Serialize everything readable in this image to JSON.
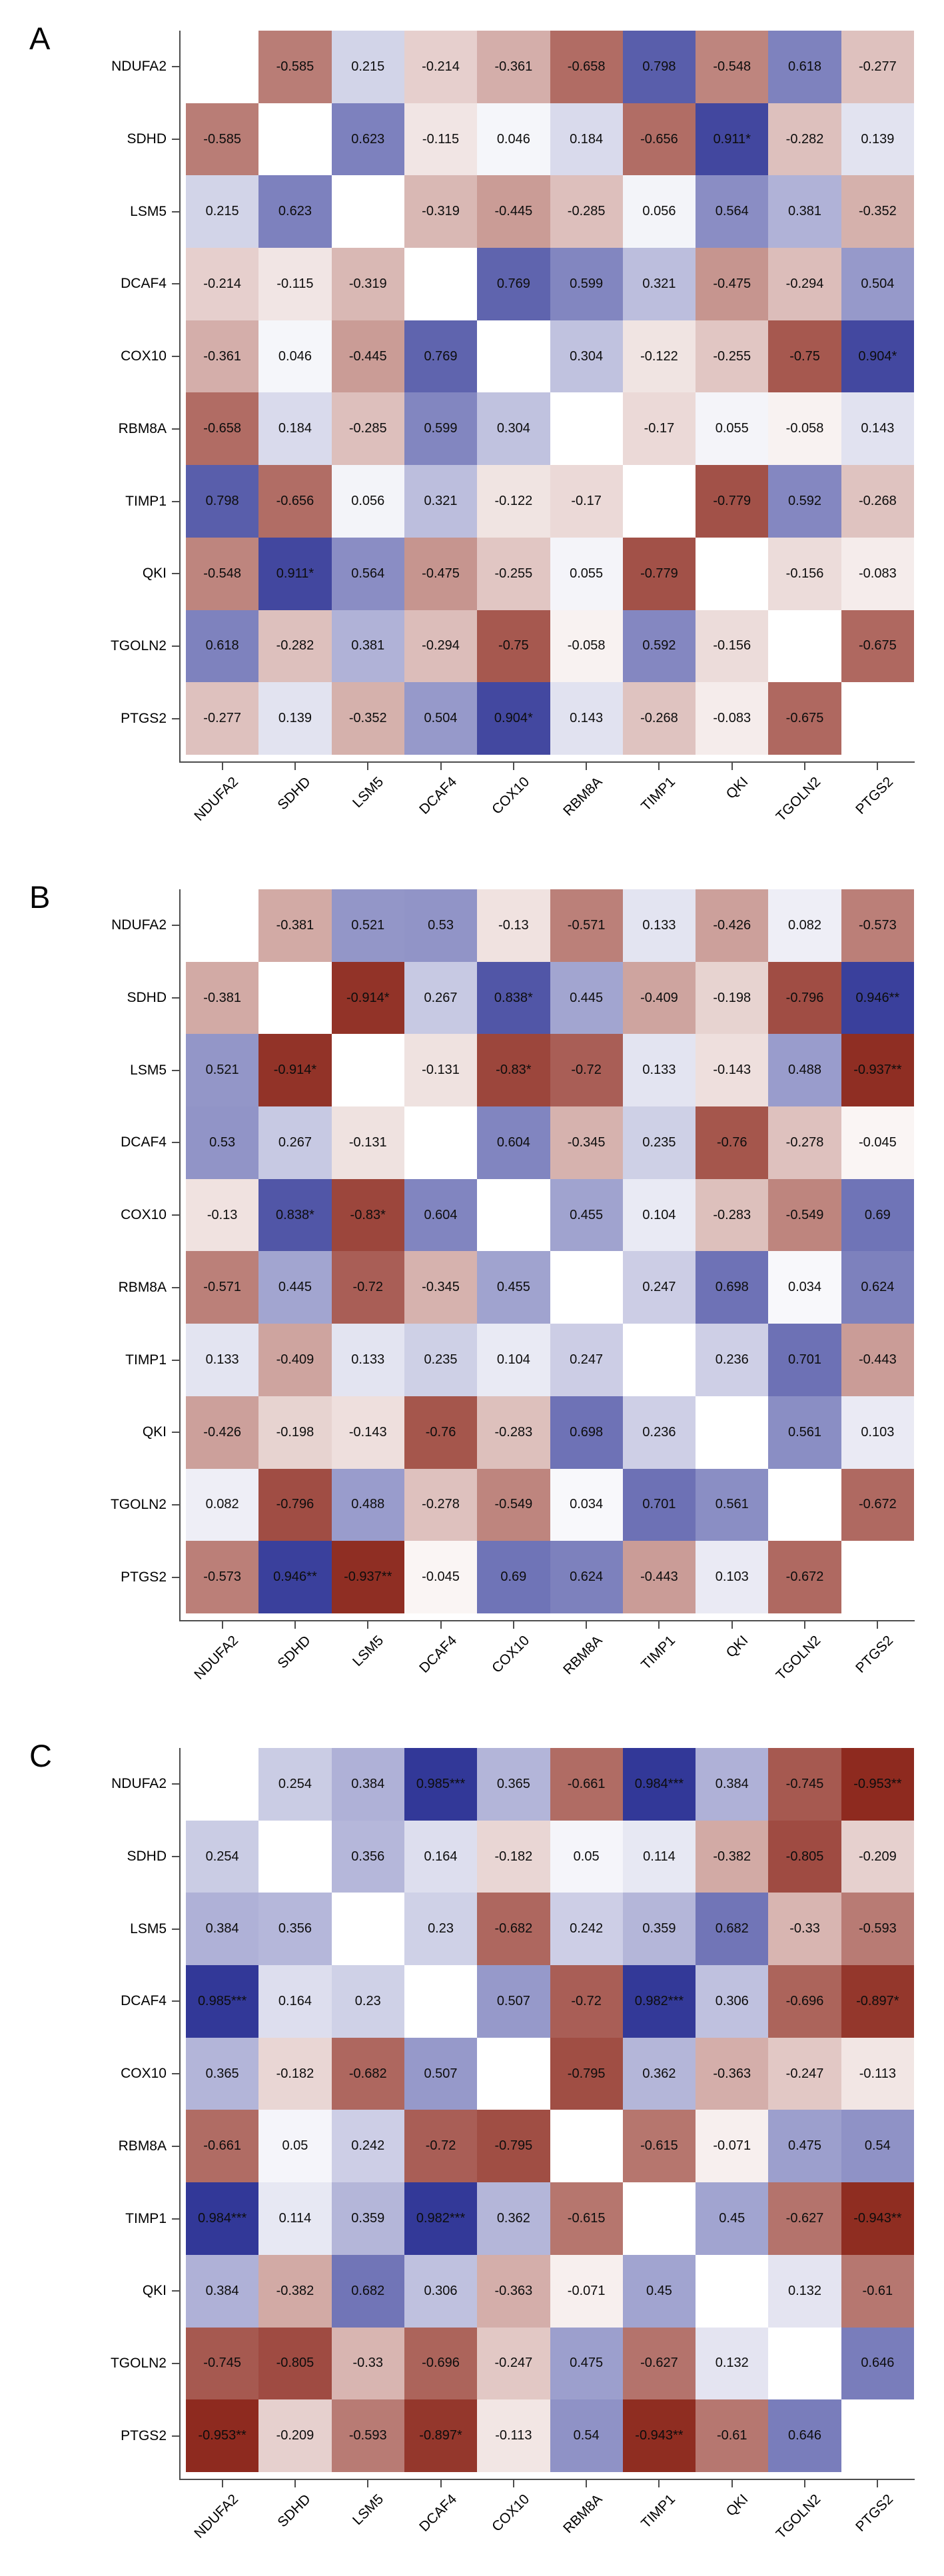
{
  "chart_data": {
    "type": "heatmap",
    "title": "",
    "categories": [
      "NDUFA2",
      "SDHD",
      "LSM5",
      "DCAF4",
      "COX10",
      "RBM8A",
      "TIMP1",
      "QKI",
      "TGOLN2",
      "PTGS2"
    ],
    "value_range": [
      -1,
      1
    ],
    "x_tick_rotation": 45,
    "diagonal": "blank",
    "grid": "off",
    "legend": "none",
    "axis_color": "#4d4d4d",
    "colormap": {
      "positive_end": "#2f3596",
      "negative_end": "#882014",
      "midpoint": "#ffffff"
    },
    "panels": [
      {
        "label": "A",
        "matrix": [
          [
            "",
            "-0.585",
            "0.215",
            "-0.214",
            "-0.361",
            "-0.658",
            "0.798",
            "-0.548",
            "0.618",
            "-0.277"
          ],
          [
            "-0.585",
            "",
            "0.623",
            "-0.115",
            "0.046",
            "0.184",
            "-0.656",
            "0.911*",
            "-0.282",
            "0.139"
          ],
          [
            "0.215",
            "0.623",
            "",
            "-0.319",
            "-0.445",
            "-0.285",
            "0.056",
            "0.564",
            "0.381",
            "-0.352"
          ],
          [
            "-0.214",
            "-0.115",
            "-0.319",
            "",
            "0.769",
            "0.599",
            "0.321",
            "-0.475",
            "-0.294",
            "0.504"
          ],
          [
            "-0.361",
            "0.046",
            "-0.445",
            "0.769",
            "",
            "0.304",
            "-0.122",
            "-0.255",
            "-0.75",
            "0.904*"
          ],
          [
            "-0.658",
            "0.184",
            "-0.285",
            "0.599",
            "0.304",
            "",
            "-0.17",
            "0.055",
            "-0.058",
            "0.143"
          ],
          [
            "0.798",
            "-0.656",
            "0.056",
            "0.321",
            "-0.122",
            "-0.17",
            "",
            "-0.779",
            "0.592",
            "-0.268"
          ],
          [
            "-0.548",
            "0.911*",
            "0.564",
            "-0.475",
            "-0.255",
            "0.055",
            "-0.779",
            "",
            "-0.156",
            "-0.083"
          ],
          [
            "0.618",
            "-0.282",
            "0.381",
            "-0.294",
            "-0.75",
            "-0.058",
            "0.592",
            "-0.156",
            "",
            "-0.675"
          ],
          [
            "-0.277",
            "0.139",
            "-0.352",
            "0.504",
            "0.904*",
            "0.143",
            "-0.268",
            "-0.083",
            "-0.675",
            ""
          ]
        ]
      },
      {
        "label": "B",
        "matrix": [
          [
            "",
            "-0.381",
            "0.521",
            "0.53",
            "-0.13",
            "-0.571",
            "0.133",
            "-0.426",
            "0.082",
            "-0.573"
          ],
          [
            "-0.381",
            "",
            "-0.914*",
            "0.267",
            "0.838*",
            "0.445",
            "-0.409",
            "-0.198",
            "-0.796",
            "0.946**"
          ],
          [
            "0.521",
            "-0.914*",
            "",
            "-0.131",
            "-0.83*",
            "-0.72",
            "0.133",
            "-0.143",
            "0.488",
            "-0.937**"
          ],
          [
            "0.53",
            "0.267",
            "-0.131",
            "",
            "0.604",
            "-0.345",
            "0.235",
            "-0.76",
            "-0.278",
            "-0.045"
          ],
          [
            "-0.13",
            "0.838*",
            "-0.83*",
            "0.604",
            "",
            "0.455",
            "0.104",
            "-0.283",
            "-0.549",
            "0.69"
          ],
          [
            "-0.571",
            "0.445",
            "-0.72",
            "-0.345",
            "0.455",
            "",
            "0.247",
            "0.698",
            "0.034",
            "0.624"
          ],
          [
            "0.133",
            "-0.409",
            "0.133",
            "0.235",
            "0.104",
            "0.247",
            "",
            "0.236",
            "0.701",
            "-0.443"
          ],
          [
            "-0.426",
            "-0.198",
            "-0.143",
            "-0.76",
            "-0.283",
            "0.698",
            "0.236",
            "",
            "0.561",
            "0.103"
          ],
          [
            "0.082",
            "-0.796",
            "0.488",
            "-0.278",
            "-0.549",
            "0.034",
            "0.701",
            "0.561",
            "",
            "-0.672"
          ],
          [
            "-0.573",
            "0.946**",
            "-0.937**",
            "-0.045",
            "0.69",
            "0.624",
            "-0.443",
            "0.103",
            "-0.672",
            ""
          ]
        ]
      },
      {
        "label": "C",
        "matrix": [
          [
            "",
            "0.254",
            "0.384",
            "0.985***",
            "0.365",
            "-0.661",
            "0.984***",
            "0.384",
            "-0.745",
            "-0.953**"
          ],
          [
            "0.254",
            "",
            "0.356",
            "0.164",
            "-0.182",
            "0.05",
            "0.114",
            "-0.382",
            "-0.805",
            "-0.209"
          ],
          [
            "0.384",
            "0.356",
            "",
            "0.23",
            "-0.682",
            "0.242",
            "0.359",
            "0.682",
            "-0.33",
            "-0.593"
          ],
          [
            "0.985***",
            "0.164",
            "0.23",
            "",
            "0.507",
            "-0.72",
            "0.982***",
            "0.306",
            "-0.696",
            "-0.897*"
          ],
          [
            "0.365",
            "-0.182",
            "-0.682",
            "0.507",
            "",
            "-0.795",
            "0.362",
            "-0.363",
            "-0.247",
            "-0.113"
          ],
          [
            "-0.661",
            "0.05",
            "0.242",
            "-0.72",
            "-0.795",
            "",
            "-0.615",
            "-0.071",
            "0.475",
            "0.54"
          ],
          [
            "0.984***",
            "0.114",
            "0.359",
            "0.982***",
            "0.362",
            "-0.615",
            "",
            "0.45",
            "-0.627",
            "-0.943**"
          ],
          [
            "0.384",
            "-0.382",
            "0.682",
            "0.306",
            "-0.363",
            "-0.071",
            "0.45",
            "",
            "0.132",
            "-0.61"
          ],
          [
            "-0.745",
            "-0.805",
            "-0.33",
            "-0.696",
            "-0.247",
            "0.475",
            "-0.627",
            "0.132",
            "",
            "0.646"
          ],
          [
            "-0.953**",
            "-0.209",
            "-0.593",
            "-0.897*",
            "-0.113",
            "0.54",
            "-0.943**",
            "-0.61",
            "0.646",
            ""
          ]
        ]
      }
    ]
  }
}
